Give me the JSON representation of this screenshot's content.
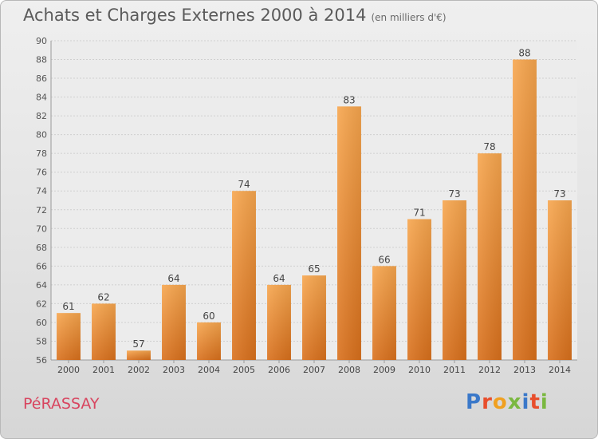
{
  "title": "Achats et Charges Externes 2000 à 2014",
  "unit": "(en milliers d'€)",
  "commune": "PéRASSAY",
  "brand": {
    "letters": [
      "P",
      "r",
      "o",
      "x",
      "i",
      "t",
      "i"
    ],
    "colors": [
      "#3a78c9",
      "#e84e2c",
      "#f0a020",
      "#7ab840",
      "#3a78c9",
      "#e84e2c",
      "#7ab840"
    ]
  },
  "chart_data": {
    "type": "bar",
    "categories": [
      "2000",
      "2001",
      "2002",
      "2003",
      "2004",
      "2005",
      "2006",
      "2007",
      "2008",
      "2009",
      "2010",
      "2011",
      "2012",
      "2013",
      "2014"
    ],
    "values": [
      61,
      62,
      57,
      64,
      60,
      74,
      64,
      65,
      83,
      66,
      71,
      73,
      78,
      88,
      73
    ],
    "ylim": [
      56,
      90
    ],
    "yticks": [
      56,
      58,
      60,
      62,
      64,
      66,
      68,
      70,
      72,
      74,
      76,
      78,
      80,
      82,
      84,
      86,
      88,
      90
    ],
    "grid": true,
    "bar_color": "#f0923a"
  }
}
